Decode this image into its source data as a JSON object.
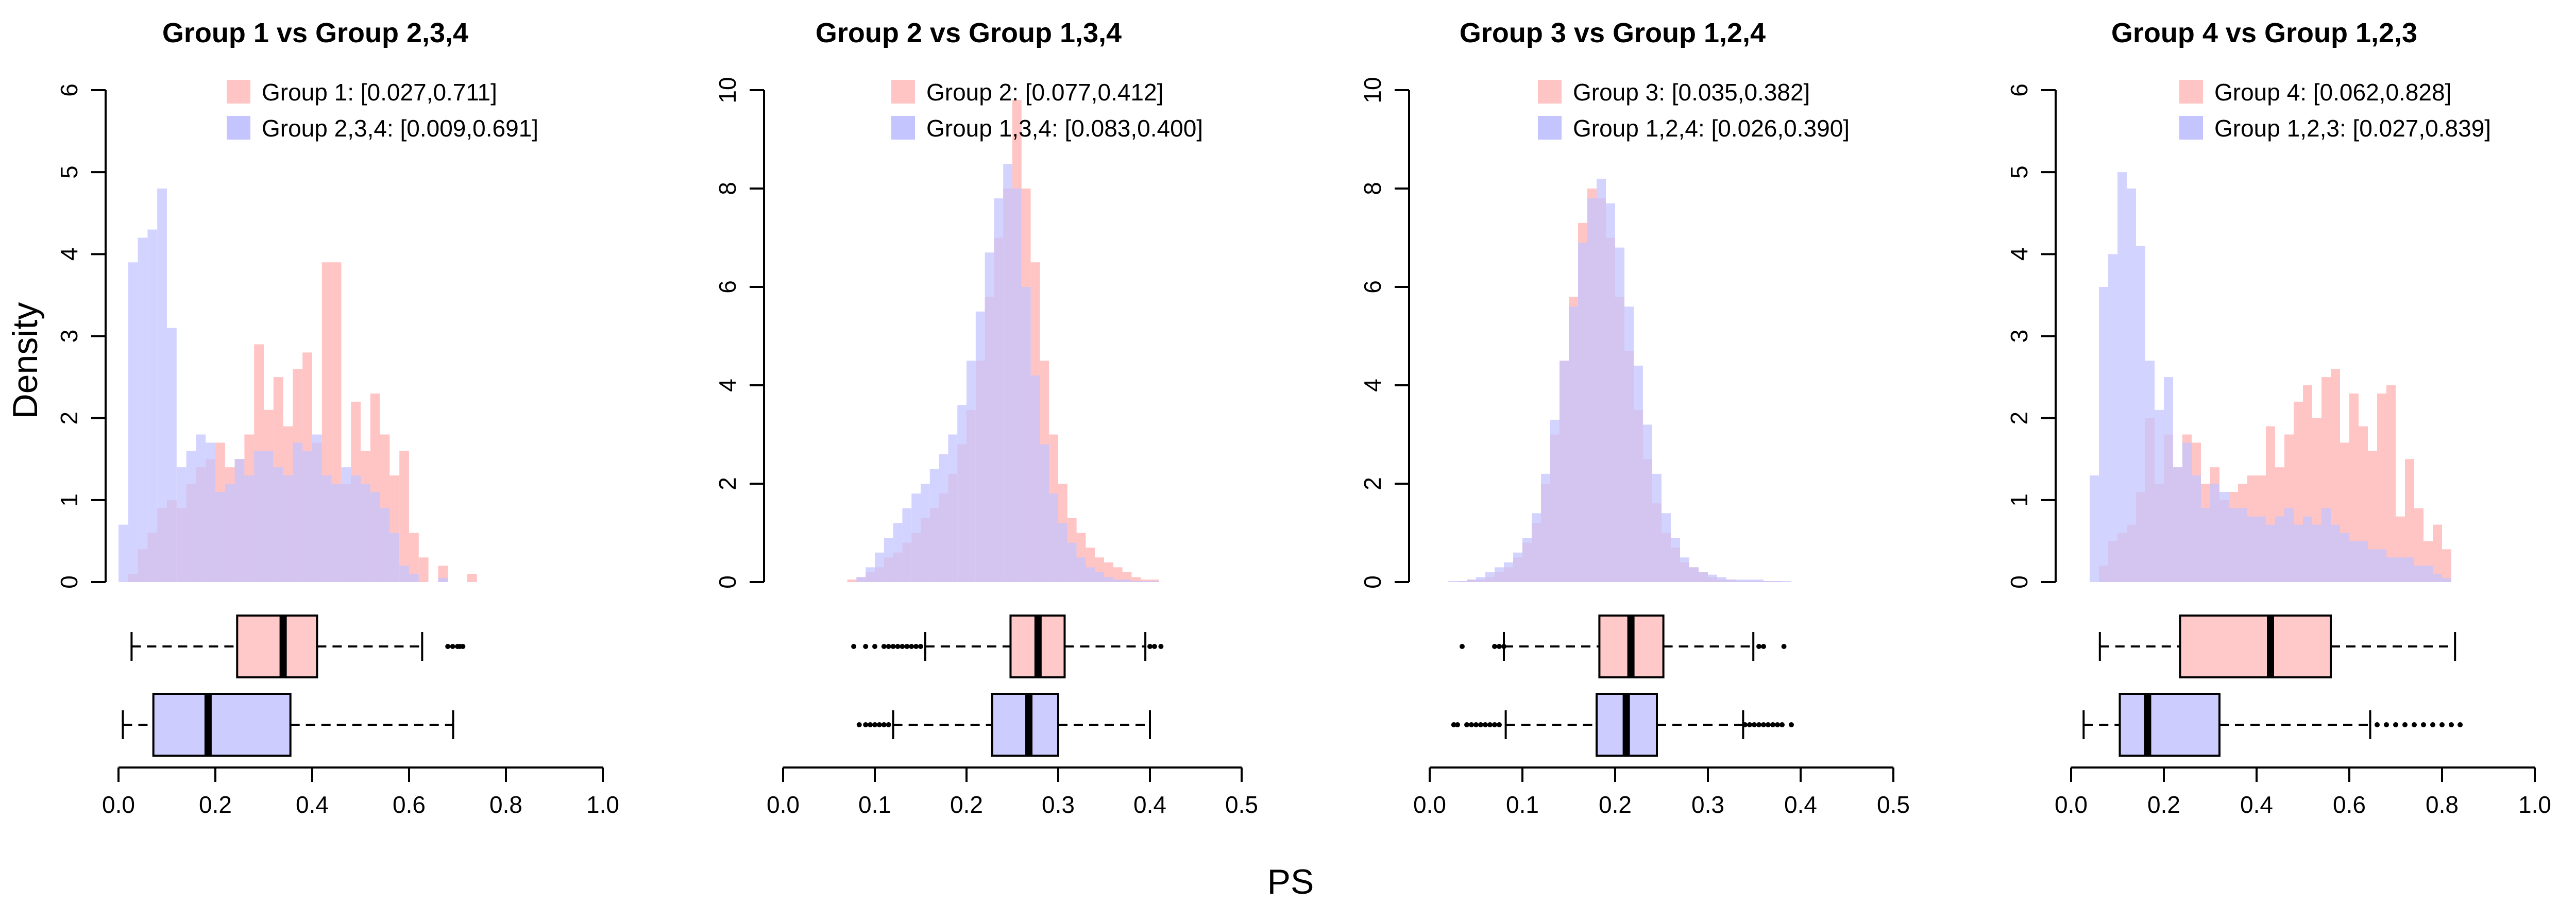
{
  "colors": {
    "primary": "#ffc4c4",
    "reference": "#c4c4ff",
    "primary_box": "#ffc9c9",
    "reference_box": "#ccccff"
  },
  "ylabel": "Density",
  "xlabel": "PS",
  "chart_data": [
    {
      "type": "histogram+boxplot",
      "title": "Group 1 vs Group 2,3,4",
      "ylim": [
        0,
        6
      ],
      "yticks": [
        "0",
        "1",
        "2",
        "3",
        "4",
        "5",
        "6"
      ],
      "xlim": [
        0,
        1
      ],
      "xticks": [
        "0.0",
        "0.2",
        "0.4",
        "0.6",
        "0.8",
        "1.0"
      ],
      "legend": [
        "Group 1: [0.027,0.711]",
        "Group 2,3,4: [0.009,0.691]"
      ],
      "bin_width": 0.02,
      "series": [
        {
          "name": "Group 1",
          "start": 0.02,
          "values": [
            0.1,
            0.4,
            0.6,
            0.9,
            1.0,
            0.9,
            1.2,
            1.4,
            1.5,
            1.7,
            1.4,
            1.5,
            1.8,
            2.9,
            2.1,
            2.5,
            1.9,
            2.6,
            2.8,
            1.7,
            3.9,
            3.9,
            1.2,
            2.2,
            1.6,
            2.3,
            1.8,
            1.3,
            1.6,
            0.6,
            0.3,
            0,
            0.2,
            0,
            0,
            0.1
          ]
        },
        {
          "name": "Group 2,3,4",
          "start": 0.0,
          "values": [
            0.7,
            3.9,
            4.2,
            4.3,
            4.8,
            3.1,
            1.4,
            1.6,
            1.8,
            1.7,
            1.1,
            1.2,
            1.5,
            1.3,
            1.6,
            1.6,
            1.4,
            1.3,
            1.7,
            1.6,
            1.8,
            1.3,
            1.2,
            1.4,
            1.3,
            1.2,
            1.1,
            0.9,
            0.6,
            0.2,
            0.1,
            0,
            0,
            0.05
          ]
        }
      ],
      "boxplots": [
        {
          "name": "Group 1",
          "whisker_low": 0.027,
          "q1": 0.245,
          "median": 0.34,
          "q3": 0.41,
          "whisker_high": 0.627,
          "outliers": [
            0.68,
            0.69,
            0.7,
            0.705,
            0.711
          ]
        },
        {
          "name": "Group 2,3,4",
          "whisker_low": 0.009,
          "q1": 0.072,
          "median": 0.185,
          "q3": 0.355,
          "whisker_high": 0.691,
          "outliers": []
        }
      ]
    },
    {
      "type": "histogram+boxplot",
      "title": "Group 2 vs Group 1,3,4",
      "ylim": [
        0,
        10
      ],
      "yticks": [
        "0",
        "2",
        "4",
        "6",
        "8",
        "10"
      ],
      "xlim": [
        0,
        0.5
      ],
      "xticks": [
        "0.0",
        "0.1",
        "0.2",
        "0.3",
        "0.4",
        "0.5"
      ],
      "legend": [
        "Group 2: [0.077,0.412]",
        "Group 1,3,4: [0.083,0.400]"
      ],
      "bin_width": 0.01,
      "series": [
        {
          "name": "Group 2",
          "start": 0.07,
          "values": [
            0.05,
            0.1,
            0.2,
            0.3,
            0.5,
            0.6,
            0.8,
            1.0,
            1.3,
            1.5,
            1.8,
            2.2,
            2.8,
            3.5,
            4.5,
            5.8,
            7.0,
            8.0,
            9.8,
            8.0,
            6.5,
            4.5,
            3.0,
            2.0,
            1.3,
            1.0,
            0.7,
            0.5,
            0.4,
            0.3,
            0.2,
            0.1,
            0.05,
            0.05
          ]
        },
        {
          "name": "Group 1,3,4",
          "start": 0.08,
          "values": [
            0.1,
            0.3,
            0.6,
            0.9,
            1.2,
            1.5,
            1.8,
            2.0,
            2.3,
            2.6,
            3.0,
            3.6,
            4.5,
            5.5,
            6.7,
            7.8,
            8.5,
            8.0,
            6.0,
            4.2,
            2.8,
            1.8,
            1.2,
            0.8,
            0.5,
            0.3,
            0.2,
            0.1,
            0.05,
            0.05,
            0.02,
            0.02,
            0.02
          ]
        }
      ],
      "boxplots": [
        {
          "name": "Group 2",
          "whisker_low": 0.155,
          "q1": 0.248,
          "median": 0.278,
          "q3": 0.307,
          "whisker_high": 0.395,
          "outliers": [
            0.077,
            0.09,
            0.1,
            0.11,
            0.115,
            0.12,
            0.125,
            0.13,
            0.135,
            0.14,
            0.145,
            0.15,
            0.4,
            0.405,
            0.412
          ]
        },
        {
          "name": "Group 1,3,4",
          "whisker_low": 0.12,
          "q1": 0.228,
          "median": 0.268,
          "q3": 0.3,
          "whisker_high": 0.4,
          "outliers": [
            0.083,
            0.09,
            0.095,
            0.1,
            0.105,
            0.11,
            0.115
          ]
        }
      ]
    },
    {
      "type": "histogram+boxplot",
      "title": "Group 3 vs Group 1,2,4",
      "ylim": [
        0,
        10
      ],
      "yticks": [
        "0",
        "2",
        "4",
        "6",
        "8",
        "10"
      ],
      "xlim": [
        0,
        0.5
      ],
      "xticks": [
        "0.0",
        "0.1",
        "0.2",
        "0.3",
        "0.4",
        "0.5"
      ],
      "legend": [
        "Group 3: [0.035,0.382]",
        "Group 1,2,4: [0.026,0.390]"
      ],
      "bin_width": 0.01,
      "series": [
        {
          "name": "Group 3",
          "start": 0.03,
          "values": [
            0.02,
            0.05,
            0.05,
            0.1,
            0.2,
            0.3,
            0.5,
            0.8,
            1.2,
            2.0,
            3.0,
            4.5,
            5.8,
            7.3,
            8.0,
            7.8,
            7.0,
            5.8,
            4.7,
            3.5,
            2.5,
            1.6,
            1.0,
            0.7,
            0.4,
            0.3,
            0.2,
            0.1,
            0.05,
            0.05,
            0.02,
            0.02,
            0.02,
            0.02,
            0.02
          ]
        },
        {
          "name": "Group 1,2,4",
          "start": 0.02,
          "values": [
            0.02,
            0.02,
            0.05,
            0.1,
            0.2,
            0.3,
            0.4,
            0.6,
            0.9,
            1.4,
            2.2,
            3.3,
            4.5,
            5.6,
            6.9,
            7.8,
            8.2,
            7.7,
            6.8,
            5.6,
            4.4,
            3.2,
            2.2,
            1.4,
            0.9,
            0.5,
            0.3,
            0.2,
            0.15,
            0.1,
            0.05,
            0.05,
            0.05,
            0.05,
            0.02,
            0.02,
            0.02
          ]
        }
      ],
      "boxplots": [
        {
          "name": "Group 3",
          "whisker_low": 0.08,
          "q1": 0.183,
          "median": 0.217,
          "q3": 0.252,
          "whisker_high": 0.349,
          "outliers": [
            0.035,
            0.07,
            0.075,
            0.08,
            0.355,
            0.36,
            0.382
          ]
        },
        {
          "name": "Group 1,2,4",
          "whisker_low": 0.082,
          "q1": 0.18,
          "median": 0.212,
          "q3": 0.245,
          "whisker_high": 0.338,
          "outliers": [
            0.026,
            0.03,
            0.04,
            0.045,
            0.05,
            0.055,
            0.06,
            0.065,
            0.07,
            0.075,
            0.34,
            0.345,
            0.35,
            0.355,
            0.36,
            0.365,
            0.37,
            0.375,
            0.38,
            0.39
          ]
        }
      ]
    },
    {
      "type": "histogram+boxplot",
      "title": "Group 4 vs Group 1,2,3",
      "ylim": [
        0,
        6
      ],
      "yticks": [
        "0",
        "1",
        "2",
        "3",
        "4",
        "5",
        "6"
      ],
      "xlim": [
        0,
        1
      ],
      "xticks": [
        "0.0",
        "0.2",
        "0.4",
        "0.6",
        "0.8",
        "1.0"
      ],
      "legend": [
        "Group 4: [0.062,0.828]",
        "Group 1,2,3: [0.027,0.839]"
      ],
      "bin_width": 0.02,
      "series": [
        {
          "name": "Group 4",
          "start": 0.06,
          "values": [
            0.2,
            0.5,
            0.6,
            0.7,
            1.1,
            2.0,
            1.2,
            1.8,
            1.4,
            1.8,
            1.7,
            1.2,
            1.4,
            1.0,
            1.1,
            1.2,
            1.3,
            1.3,
            1.9,
            1.4,
            1.8,
            2.2,
            2.4,
            2.0,
            2.5,
            2.6,
            1.7,
            2.3,
            1.9,
            1.6,
            2.3,
            2.4,
            0.8,
            1.5,
            0.9,
            0.5,
            0.7,
            0.4,
            0
          ]
        },
        {
          "name": "Group 1,2,3",
          "start": 0.04,
          "values": [
            1.3,
            3.6,
            4.0,
            5.0,
            4.8,
            4.1,
            2.7,
            2.1,
            2.5,
            1.4,
            1.7,
            1.3,
            0.9,
            1.2,
            1.1,
            0.9,
            0.9,
            0.8,
            0.8,
            0.7,
            0.8,
            0.9,
            0.7,
            0.8,
            0.7,
            0.9,
            0.7,
            0.6,
            0.5,
            0.5,
            0.4,
            0.4,
            0.3,
            0.3,
            0.3,
            0.2,
            0.2,
            0.1,
            0.05,
            0
          ]
        }
      ],
      "boxplots": [
        {
          "name": "Group 4",
          "whisker_low": 0.062,
          "q1": 0.235,
          "median": 0.43,
          "q3": 0.56,
          "whisker_high": 0.828,
          "outliers": []
        },
        {
          "name": "Group 1,2,3",
          "whisker_low": 0.027,
          "q1": 0.105,
          "median": 0.165,
          "q3": 0.32,
          "whisker_high": 0.645,
          "outliers": [
            0.66,
            0.68,
            0.7,
            0.72,
            0.74,
            0.76,
            0.78,
            0.8,
            0.82,
            0.839
          ]
        }
      ]
    }
  ]
}
